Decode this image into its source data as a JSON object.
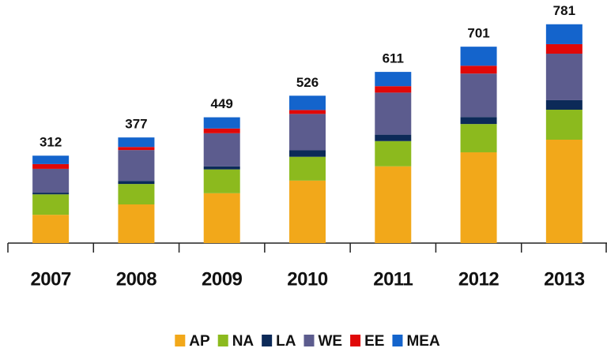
{
  "chart_data": {
    "type": "stacked_bar",
    "categories": [
      "2007",
      "2008",
      "2009",
      "2010",
      "2011",
      "2012",
      "2013"
    ],
    "series": [
      {
        "name": "AP",
        "color": "#f2a81a",
        "values": [
          101,
          138,
          178,
          223,
          274,
          324,
          369
        ]
      },
      {
        "name": "NA",
        "color": "#8cba1e",
        "values": [
          73,
          73,
          85,
          85,
          90,
          101,
          107
        ]
      },
      {
        "name": "LA",
        "color": "#0c2a58",
        "values": [
          6,
          11,
          11,
          23,
          23,
          25,
          34
        ]
      },
      {
        "name": "WE",
        "color": "#5c5c8e",
        "values": [
          85,
          110,
          118,
          130,
          150,
          155,
          166
        ]
      },
      {
        "name": "EE",
        "color": "#e00808",
        "values": [
          17,
          11,
          17,
          14,
          23,
          28,
          34
        ]
      },
      {
        "name": "MEA",
        "color": "#1464cc",
        "values": [
          30,
          34,
          40,
          51,
          51,
          68,
          71
        ]
      }
    ],
    "totals": [
      312,
      377,
      449,
      526,
      611,
      701,
      781
    ],
    "ylim": [
      0,
      800
    ]
  }
}
